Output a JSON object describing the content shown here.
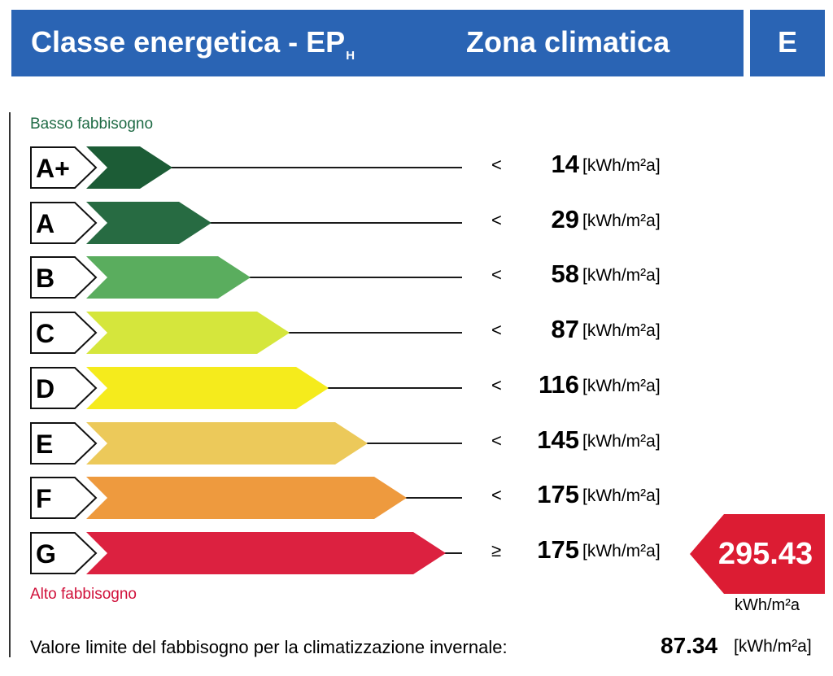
{
  "header": {
    "title": "Classe energetica - EP",
    "title_subscript": "H",
    "zone_label": "Zona climatica",
    "zone_value": "E",
    "color": "#2a64b4"
  },
  "scale": {
    "low_label": "Basso fabbisogno",
    "high_label": "Alto fabbisogno",
    "unit": "[kWh/m²a]",
    "classes": [
      {
        "label": "A+",
        "comparator": "<",
        "limit": "14",
        "color": "#1c5c36",
        "bar_end": 212
      },
      {
        "label": "A",
        "comparator": "<",
        "limit": "29",
        "color": "#276b42",
        "bar_end": 260
      },
      {
        "label": "B",
        "comparator": "<",
        "limit": "58",
        "color": "#5aad5e",
        "bar_end": 308
      },
      {
        "label": "C",
        "comparator": "<",
        "limit": "87",
        "color": "#d5e63c",
        "bar_end": 356
      },
      {
        "label": "D",
        "comparator": "<",
        "limit": "116",
        "color": "#f5eb1c",
        "bar_end": 404
      },
      {
        "label": "E",
        "comparator": "<",
        "limit": "145",
        "color": "#ecc95a",
        "bar_end": 452
      },
      {
        "label": "F",
        "comparator": "<",
        "limit": "175",
        "color": "#ee9a3e",
        "bar_end": 500
      },
      {
        "label": "G",
        "comparator": "≥",
        "limit": "175",
        "color": "#dc2140",
        "bar_end": 548
      }
    ]
  },
  "result": {
    "value": "295.43",
    "unit": "kWh/m²a",
    "color": "#dc1c33"
  },
  "footer": {
    "text": "Valore limite del fabbisogno per la climatizzazione invernale:",
    "value": "87.34",
    "unit": "[kWh/m²a]"
  }
}
